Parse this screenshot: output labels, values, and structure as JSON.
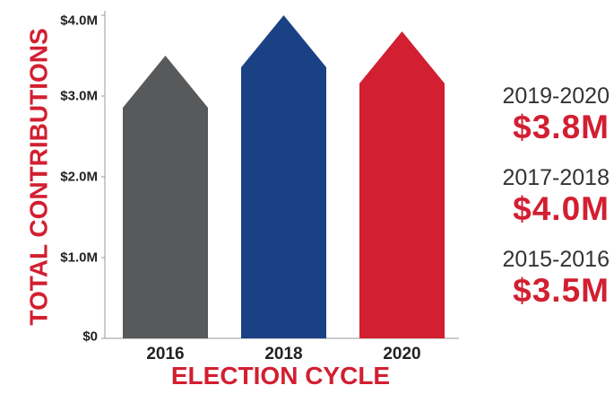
{
  "chart_data": {
    "type": "bar",
    "categories": [
      "2016",
      "2018",
      "2020"
    ],
    "values": [
      3.5,
      4.0,
      3.8
    ],
    "colors": [
      "#58595b",
      "#1b4185",
      "#d21f31"
    ],
    "xlabel": "ELECTION CYCLE",
    "ylabel": "TOTAL CONTRIBUTIONS",
    "ylim": [
      0,
      4.0
    ],
    "yticks": [
      {
        "value": 0,
        "label": "$0"
      },
      {
        "value": 1.0,
        "label": "$1.0M"
      },
      {
        "value": 2.0,
        "label": "$2.0M"
      },
      {
        "value": 3.0,
        "label": "$3.0M"
      },
      {
        "value": 4.0,
        "label": "$4.0M"
      }
    ],
    "axis_title_color": "#d21f31",
    "grid": false,
    "bar_shape": "arrow"
  },
  "summary": [
    {
      "period": "2019-2020",
      "amount": "$3.8M"
    },
    {
      "period": "2017-2018",
      "amount": "$4.0M"
    },
    {
      "period": "2015-2016",
      "amount": "$3.5M"
    }
  ],
  "summary_amount_color": "#d21f31"
}
